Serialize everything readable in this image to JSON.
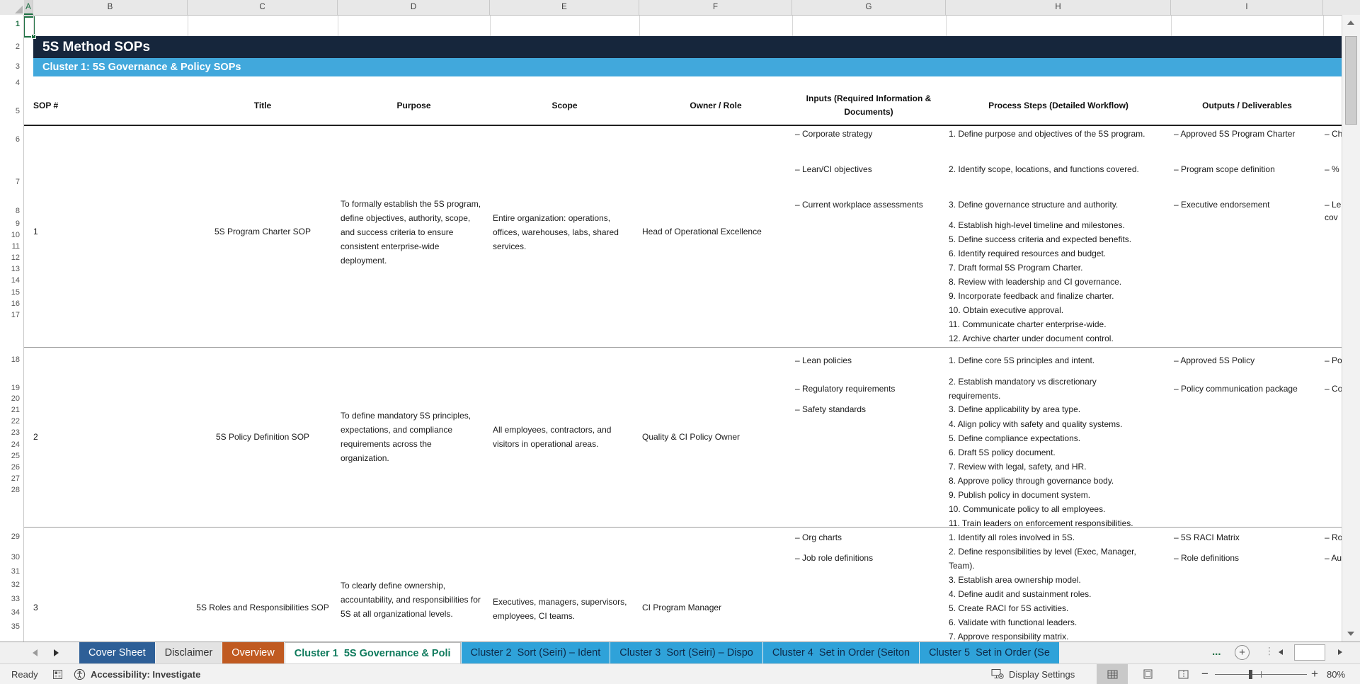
{
  "sheet": {
    "title": "5S Method SOPs",
    "subtitle": "Cluster 1: 5S Governance & Policy SOPs",
    "columns": [
      "SOP #",
      "Title",
      "Purpose",
      "Scope",
      "Owner / Role",
      "Inputs (Required Information & Documents)",
      "Process Steps (Detailed Workflow)",
      "Outputs / Deliverables"
    ],
    "rows": [
      {
        "sop": "1",
        "title": "5S Program Charter SOP",
        "purpose": "To formally establish the 5S program, define objectives, authority, scope, and success criteria to ensure consistent enterprise-wide deployment.",
        "scope": "Entire organization: operations, offices, warehouses, labs, shared services.",
        "owner": "Head of Operational Excellence",
        "inputs": [
          "– Corporate strategy",
          "– Lean/CI objectives",
          "– Current workplace assessments"
        ],
        "steps": [
          "1. Define purpose and objectives of the 5S program.",
          "2. Identify scope, locations, and functions covered.",
          "3. Define governance structure and authority.",
          "4. Establish high-level timeline and milestones.",
          "5. Define success criteria and expected benefits.",
          "6. Identify required resources and budget.",
          "7. Draft formal 5S Program Charter.",
          "8. Review with leadership and CI governance.",
          "9. Incorporate feedback and finalize charter.",
          "10. Obtain executive approval.",
          "11. Communicate charter enterprise-wide.",
          "12. Archive charter under document control."
        ],
        "outputs": [
          "– Approved 5S Program Charter",
          "– Program scope definition",
          "– Executive endorsement"
        ],
        "next_column_truncated": [
          "– Ch",
          "– %",
          "– Le",
          "cov"
        ]
      },
      {
        "sop": "2",
        "title": "5S Policy Definition SOP",
        "purpose": "To define mandatory 5S principles, expectations, and compliance requirements across the organization.",
        "scope": "All employees, contractors, and visitors in operational areas.",
        "owner": "Quality & CI Policy Owner",
        "inputs": [
          "– Lean policies",
          "– Regulatory requirements",
          "– Safety standards"
        ],
        "steps": [
          "1. Define core 5S principles and intent.",
          "2. Establish mandatory vs discretionary requirements.",
          "3. Define applicability by area type.",
          "4. Align policy with safety and quality systems.",
          "5. Define compliance expectations.",
          "6. Draft 5S policy document.",
          "7. Review with legal, safety, and HR.",
          "8. Approve policy through governance body.",
          "9. Publish policy in document system.",
          "10. Communicate policy to all employees.",
          "11. Train leaders on enforcement responsibilities."
        ],
        "outputs": [
          "– Approved 5S Policy",
          "– Policy communication package"
        ],
        "next_column_truncated": [
          "– Po",
          "– Co"
        ]
      },
      {
        "sop": "3",
        "title": "5S Roles and Responsibilities SOP",
        "purpose": "To clearly define ownership, accountability, and responsibilities for 5S at all organizational levels.",
        "scope": "Executives, managers, supervisors, employees, CI teams.",
        "owner": "CI Program Manager",
        "inputs": [
          "– Org charts",
          "– Job role definitions"
        ],
        "steps": [
          "1. Identify all roles involved in 5S.",
          "2. Define responsibilities by level (Exec, Manager, Team).",
          "3. Establish area ownership model.",
          "4. Define audit and sustainment roles.",
          "5. Create RACI for 5S activities.",
          "6. Validate with functional leaders.",
          "7. Approve responsibility matrix."
        ],
        "outputs": [
          "– 5S RACI Matrix",
          "– Role definitions"
        ],
        "next_column_truncated": [
          "– Ro",
          "– Au"
        ]
      }
    ]
  },
  "grid": {
    "selected_cell": "A1",
    "column_letters": [
      "A",
      "B",
      "C",
      "D",
      "E",
      "F",
      "G",
      "H",
      "I"
    ],
    "row_numbers": [
      1,
      2,
      3,
      4,
      5,
      6,
      7,
      8,
      9,
      10,
      11,
      12,
      13,
      14,
      15,
      16,
      17,
      18,
      19,
      20,
      21,
      22,
      23,
      24,
      25,
      26,
      27,
      28,
      29,
      30,
      31,
      32,
      33,
      34,
      35
    ]
  },
  "tab_bar": {
    "overflow_ellipsis": "...",
    "new_sheet_label": "+",
    "tabs": [
      {
        "label": "Cover Sheet",
        "style": "cover"
      },
      {
        "label": "Disclaimer",
        "style": "plain"
      },
      {
        "label": "Overview",
        "style": "overview"
      },
      {
        "label": "Cluster 1  5S Governance & Poli",
        "style": "active"
      },
      {
        "label": "Cluster 2  Sort (Seiri) – Ident",
        "style": "cluster"
      },
      {
        "label": "Cluster 3  Sort (Seiri) – Dispo",
        "style": "cluster"
      },
      {
        "label": "Cluster 4  Set in Order (Seiton",
        "style": "cluster"
      },
      {
        "label": "Cluster 5  Set in Order (Se",
        "style": "cluster"
      }
    ]
  },
  "status_bar": {
    "ready": "Ready",
    "accessibility": "Accessibility: Investigate",
    "display_settings": "Display Settings",
    "zoom_level": "80%"
  },
  "colors": {
    "title_banner_bg": "#16263C",
    "subtitle_banner_bg": "#41A8DC",
    "cluster_tab_bg": "#2FA2D9",
    "overview_tab_bg": "#C05A21",
    "cover_tab_bg": "#2E5F97",
    "active_tab_text": "#0E7A5C",
    "selection_green": "#1D6F42"
  }
}
